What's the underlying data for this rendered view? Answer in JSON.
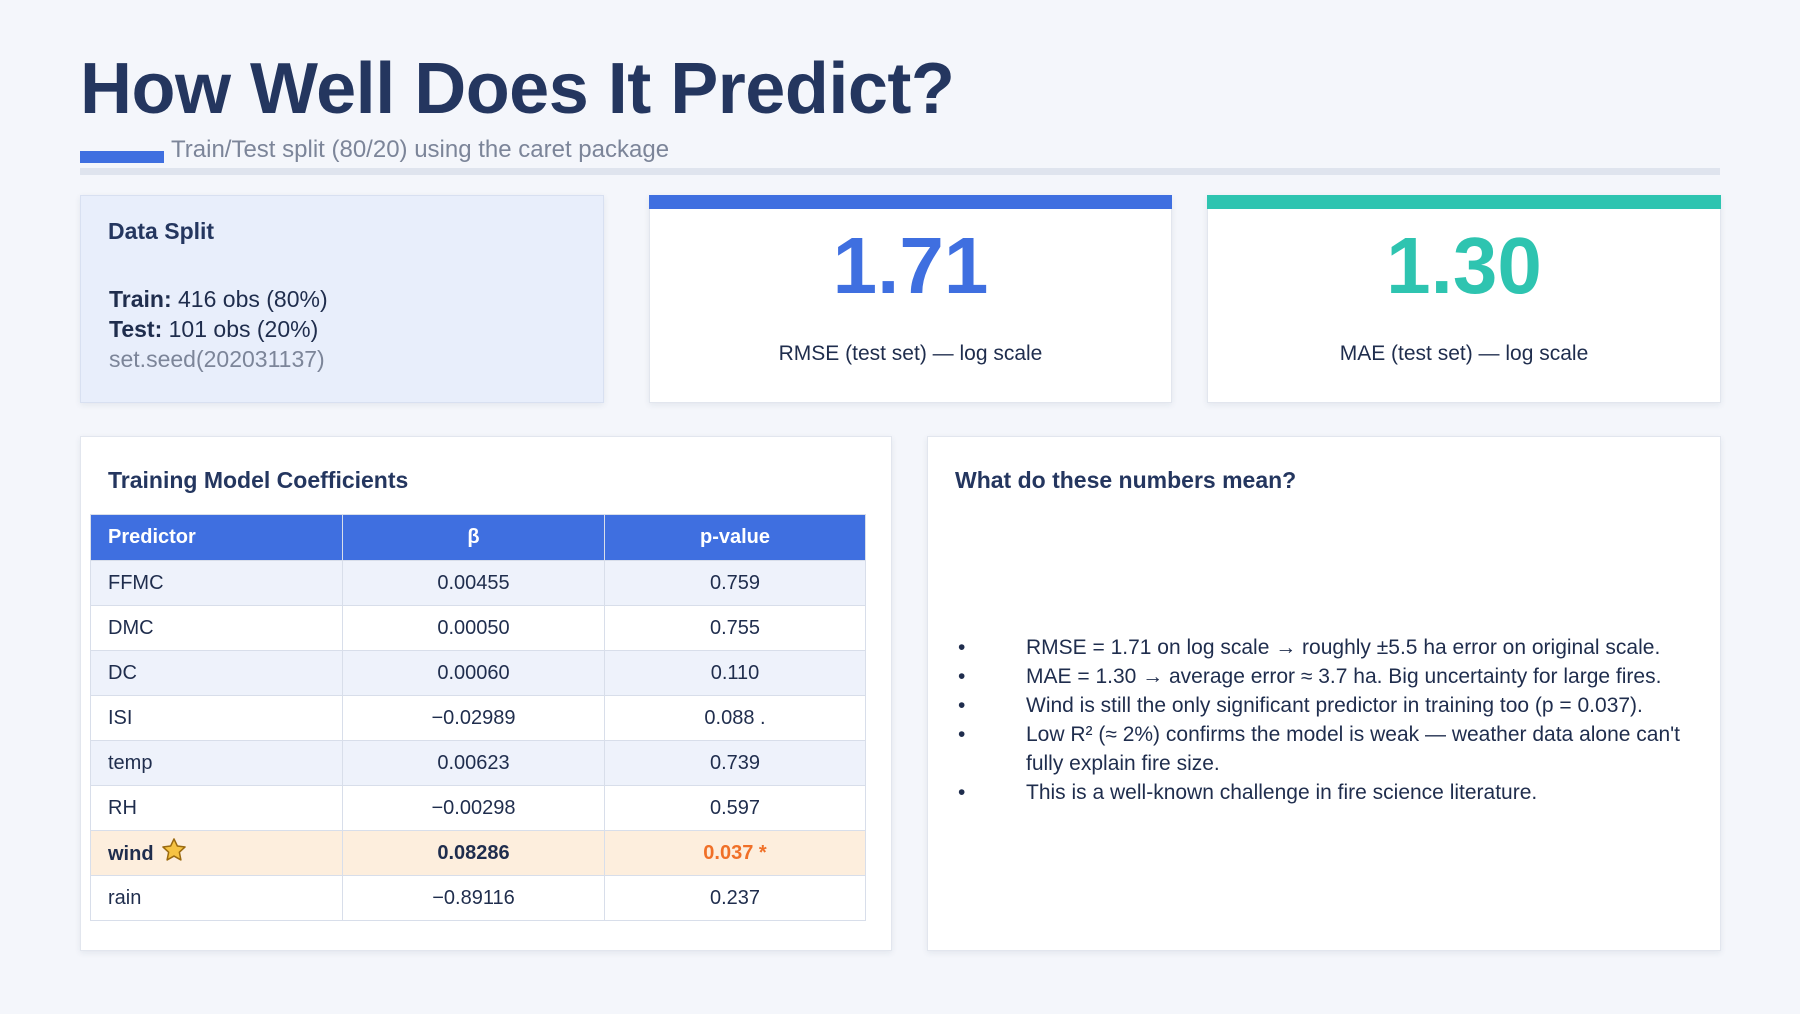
{
  "header": {
    "title": "How Well Does It Predict?",
    "subtitle": "Train/Test split (80/20) using the caret package"
  },
  "data_split": {
    "heading": "Data Split",
    "train_label": "Train:",
    "train_value": " 416 obs (80%)",
    "test_label": "Test:",
    "test_value": " 101 obs (20%)",
    "seed": "set.seed(202031137)"
  },
  "metrics": [
    {
      "value": "1.71",
      "label": "RMSE (test set) — log scale",
      "color": "#3f6fe0"
    },
    {
      "value": "1.30",
      "label": "MAE (test set) — log scale",
      "color": "#2ec4b0"
    }
  ],
  "coefficients": {
    "heading": "Training Model Coefficients",
    "columns": [
      "Predictor",
      "β",
      "p-value"
    ],
    "rows": [
      {
        "predictor": "FFMC",
        "beta": "0.00455",
        "p": "0.759"
      },
      {
        "predictor": "DMC",
        "beta": "0.00050",
        "p": "0.755"
      },
      {
        "predictor": "DC",
        "beta": "0.00060",
        "p": "0.110"
      },
      {
        "predictor": "ISI",
        "beta": "−0.02989",
        "p": "0.088 ."
      },
      {
        "predictor": "temp",
        "beta": "0.00623",
        "p": "0.739"
      },
      {
        "predictor": "RH",
        "beta": "−0.00298",
        "p": "0.597"
      },
      {
        "predictor": "wind",
        "beta": "0.08286",
        "p": "0.037 *",
        "icon": "star-icon",
        "highlight_color": "#fdeedd"
      },
      {
        "predictor": "rain",
        "beta": "−0.89116",
        "p": "0.237"
      }
    ]
  },
  "meaning": {
    "heading": "What do these numbers mean?",
    "bullets": [
      "RMSE = 1.71 on log scale → roughly ±5.5 ha error on original scale.",
      "MAE = 1.30 → average error ≈ 3.7 ha. Big uncertainty for large fires.",
      "Wind is still the only significant predictor in training too (p = 0.037).",
      "Low R² (≈ 2%) confirms the model is weak — weather data alone can't fully explain fire size.",
      "This is a well-known challenge in fire science literature."
    ]
  }
}
